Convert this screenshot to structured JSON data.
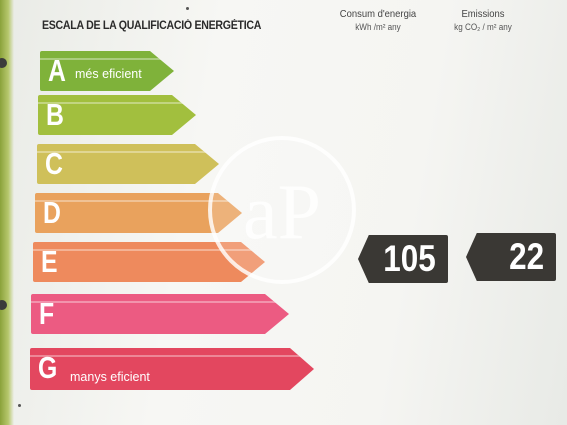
{
  "title": "ESCALA DE LA QUALIFICACIÓ ENERGÈTICA",
  "columns": [
    {
      "header": "Consum d'energia",
      "unit": "kWh /m²  any"
    },
    {
      "header": "Emissions",
      "unit": "kg CO₂ / m²  any"
    }
  ],
  "grades": [
    {
      "letter": "A",
      "label": "més eficient",
      "color": "#7fb23a"
    },
    {
      "letter": "B",
      "label": "",
      "color": "#a2bf3e"
    },
    {
      "letter": "C",
      "label": "",
      "color": "#cfc05a"
    },
    {
      "letter": "D",
      "label": "",
      "color": "#e9a25d"
    },
    {
      "letter": "E",
      "label": "",
      "color": "#ee8a5d"
    },
    {
      "letter": "F",
      "label": "",
      "color": "#ec5b82"
    },
    {
      "letter": "G",
      "label": "manys eficient",
      "color": "#e3475f"
    }
  ],
  "ratings": {
    "consumption": "105",
    "emissions": "22"
  },
  "watermark_text": "aP"
}
